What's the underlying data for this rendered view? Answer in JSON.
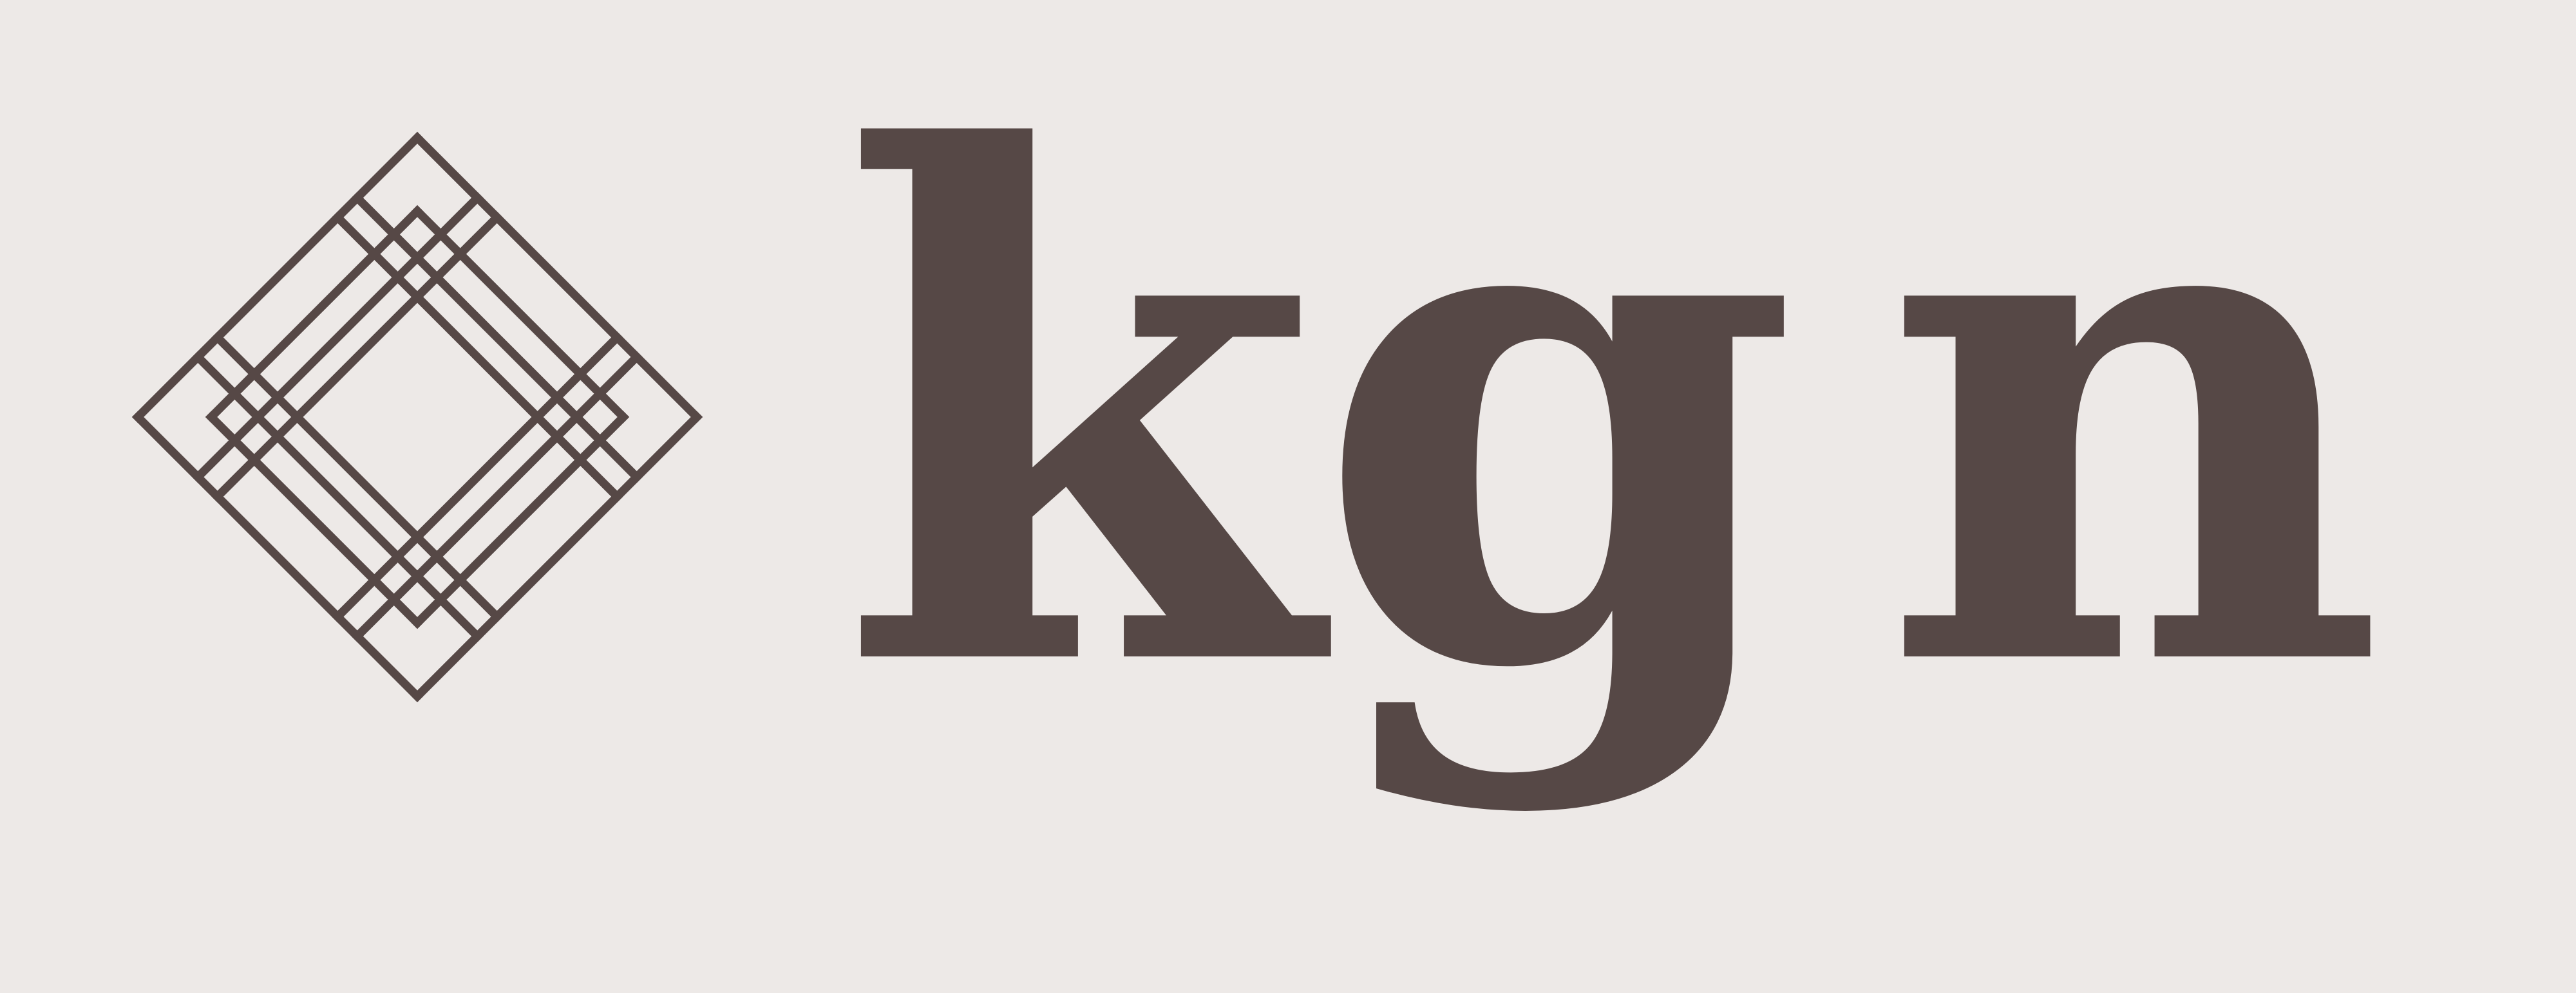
{
  "logo": {
    "wordmark": "kgn",
    "letters": [
      "k",
      "g",
      "n"
    ],
    "mark_icon": "diamond-lattice-icon",
    "colors": {
      "background": "#ede9e7",
      "ink": "#564846"
    }
  }
}
